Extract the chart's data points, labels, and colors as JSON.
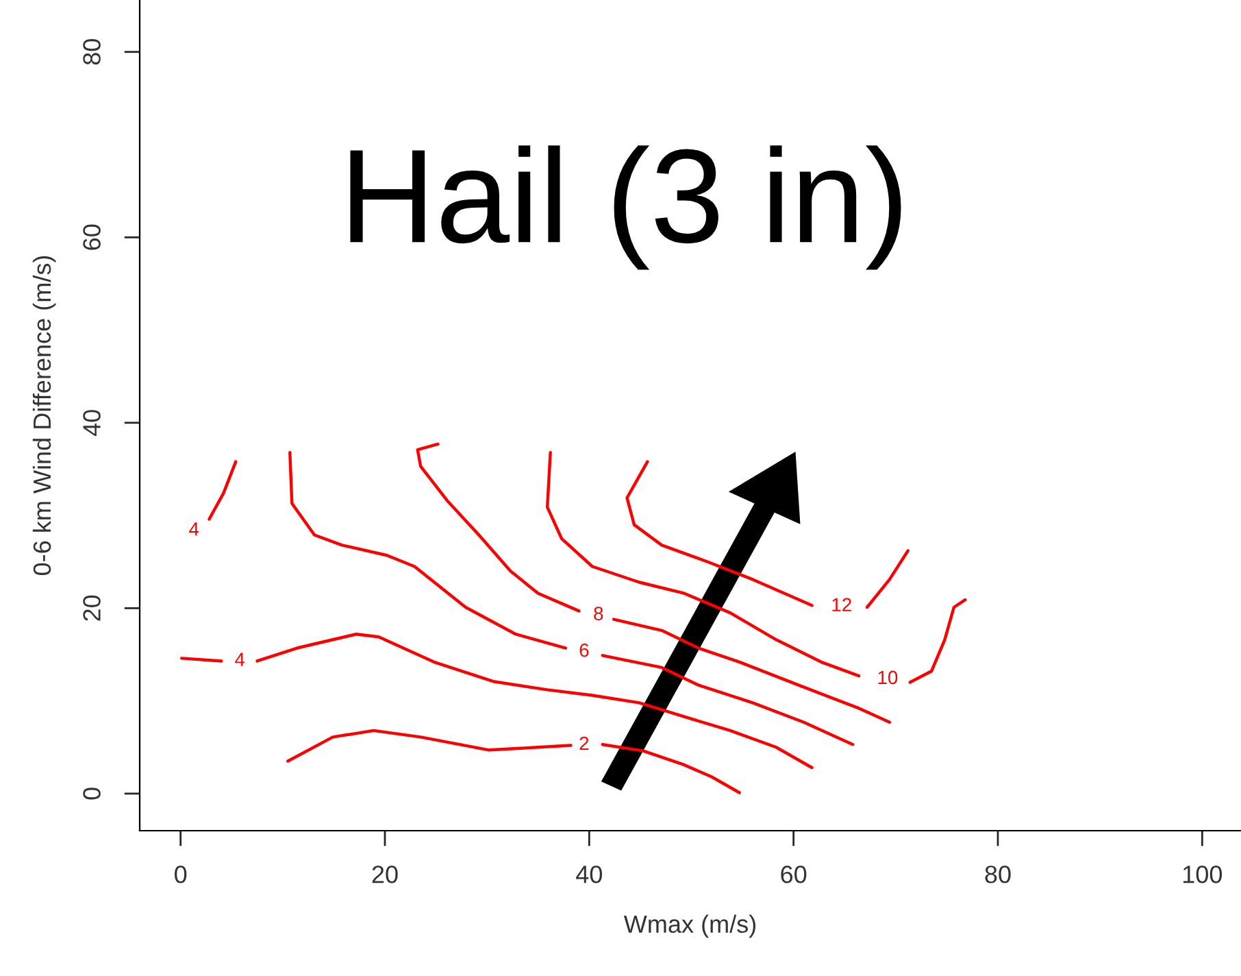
{
  "chart_data": {
    "type": "line",
    "title": "Hail (3 in)",
    "xlabel": "Wmax (m/s)",
    "ylabel": "0-6 km Wind Difference (m/s)",
    "xlim": [
      -4,
      103.8
    ],
    "ylim": [
      -4,
      85.6
    ],
    "xticks": [
      0,
      20,
      40,
      60,
      80,
      100
    ],
    "yticks": [
      0,
      20,
      40,
      60,
      80
    ],
    "grid": false,
    "legend": false,
    "marker": "none",
    "line_style": "solid",
    "series": [
      {
        "name": "2",
        "color": "#ff0000",
        "x": [
          10.5,
          14.9,
          18.9,
          23.5,
          30.2,
          35.0,
          38.2,
          39.5,
          41.3,
          45.3,
          49.3,
          52.0,
          54.7
        ],
        "values": [
          3.5,
          6.1,
          6.8,
          6.1,
          4.7,
          5.0,
          5.2,
          null,
          5.3,
          4.6,
          3.1,
          1.8,
          0.1
        ]
      },
      {
        "name": "4",
        "color": "#ff0000",
        "x": [
          0.1,
          4.0,
          5.8,
          7.5,
          11.4,
          17.2,
          19.4,
          24.8,
          30.6,
          35.9,
          40.3,
          44.9,
          49.3,
          53.8,
          58.3,
          61.8
        ],
        "values": [
          14.6,
          14.3,
          null,
          14.3,
          15.7,
          17.2,
          16.9,
          14.2,
          12.1,
          11.2,
          10.6,
          9.8,
          8.3,
          6.8,
          5.0,
          2.8
        ]
      },
      {
        "name": "4",
        "color": "#ff0000",
        "x": [
          2.8,
          4.2,
          5.4
        ],
        "values": [
          29.6,
          32.4,
          35.8
        ]
      },
      {
        "name": "6",
        "color": "#ff0000",
        "x": [
          10.7,
          10.9,
          13.1,
          15.8,
          20.2,
          22.9,
          27.9,
          32.8,
          37.7,
          39.5,
          41.3,
          47.1,
          50.7,
          56.0,
          61.0,
          65.8
        ],
        "values": [
          36.8,
          31.3,
          27.9,
          26.8,
          25.7,
          24.5,
          20.1,
          17.2,
          15.7,
          null,
          14.9,
          13.6,
          11.7,
          9.8,
          7.7,
          5.3
        ]
      },
      {
        "name": "8",
        "color": "#ff0000",
        "x": [
          25.2,
          23.2,
          23.5,
          26.1,
          29.2,
          32.3,
          35.0,
          39.0,
          40.9,
          42.4,
          47.1,
          50.7,
          54.7,
          60.5,
          66.4,
          69.4
        ],
        "values": [
          37.7,
          37.1,
          35.3,
          31.6,
          27.9,
          24.0,
          21.6,
          19.7,
          null,
          18.8,
          17.6,
          15.7,
          14.2,
          11.7,
          9.2,
          7.7
        ]
      },
      {
        "name": "10",
        "color": "#ff0000",
        "x": [
          36.2,
          35.9,
          37.3,
          40.3,
          44.9,
          49.3,
          53.8,
          58.3,
          62.7,
          66.4,
          69.2,
          71.4,
          73.5,
          74.8,
          75.7,
          76.8
        ],
        "values": [
          36.8,
          30.9,
          27.5,
          24.5,
          22.8,
          21.6,
          19.5,
          16.6,
          14.2,
          12.7,
          null,
          12.0,
          13.2,
          16.6,
          20.1,
          20.9
        ]
      },
      {
        "name": "12",
        "color": "#ff0000",
        "x": [
          45.7,
          43.7,
          44.4,
          47.1,
          51.6,
          56.0,
          61.8,
          64.7,
          67.2,
          69.4,
          71.2
        ],
        "values": [
          35.8,
          31.9,
          29.0,
          26.8,
          25.0,
          23.1,
          20.3,
          null,
          20.1,
          23.1,
          26.2
        ]
      }
    ]
  }
}
